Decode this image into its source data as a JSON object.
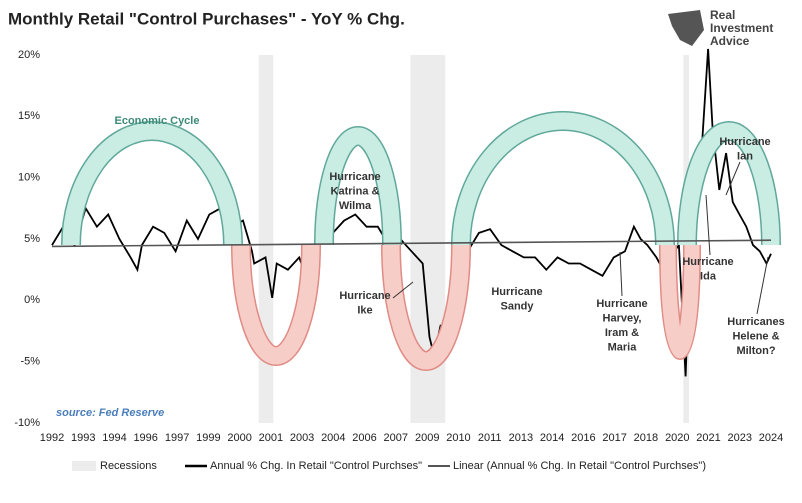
{
  "chart_data": {
    "type": "line",
    "title": "Monthly Retail \"Control Purchases\" - YoY % Chg.",
    "logo": [
      "Real",
      "Investment",
      "Advice"
    ],
    "source": "source: Fed Reserve",
    "cycle_label": "Economic  Cycle",
    "annotations": [
      [
        "Hurricane",
        "Katrina &",
        "Wilma"
      ],
      [
        "Hurricane",
        "Ike"
      ],
      [
        "Hurricane",
        "Sandy"
      ],
      [
        "Hurricane",
        "Harvey,",
        "Iram &",
        "Maria"
      ],
      [
        "Hurricane",
        "Ida"
      ],
      [
        "Hurricane",
        "Ian"
      ],
      [
        "Hurricanes",
        "Helene &",
        "Milton?"
      ]
    ],
    "xlim": [
      1992,
      2024
    ],
    "xticks": [
      {
        "value": 1992,
        "label": "1992"
      },
      {
        "value": 1993.39,
        "label": "1993"
      },
      {
        "value": 1994.78,
        "label": "1994"
      },
      {
        "value": 1996.17,
        "label": "1996"
      },
      {
        "value": 1997.57,
        "label": "1997"
      },
      {
        "value": 1998.96,
        "label": "1999"
      },
      {
        "value": 2000.35,
        "label": "2000"
      },
      {
        "value": 2001.74,
        "label": "2001"
      },
      {
        "value": 2003.13,
        "label": "2003"
      },
      {
        "value": 2004.52,
        "label": "2004"
      },
      {
        "value": 2005.91,
        "label": "2006"
      },
      {
        "value": 2007.3,
        "label": "2007"
      },
      {
        "value": 2008.7,
        "label": "2009"
      },
      {
        "value": 2010.09,
        "label": "2010"
      },
      {
        "value": 2011.48,
        "label": "2011"
      },
      {
        "value": 2012.87,
        "label": "2013"
      },
      {
        "value": 2014.26,
        "label": "2014"
      },
      {
        "value": 2015.65,
        "label": "2016"
      },
      {
        "value": 2017.04,
        "label": "2017"
      },
      {
        "value": 2018.43,
        "label": "2018"
      },
      {
        "value": 2019.83,
        "label": "2020"
      },
      {
        "value": 2021.22,
        "label": "2021"
      },
      {
        "value": 2022.61,
        "label": "2023"
      },
      {
        "value": 2024,
        "label": "2024"
      }
    ],
    "ylim": [
      -10,
      20
    ],
    "yticks": [
      {
        "value": -10,
        "label": "-10%"
      },
      {
        "value": -5,
        "label": "-5%"
      },
      {
        "value": 0,
        "label": "0%"
      },
      {
        "value": 5,
        "label": "5%"
      },
      {
        "value": 10,
        "label": "10%"
      },
      {
        "value": 15,
        "label": "15%"
      },
      {
        "value": 20,
        "label": "20%"
      }
    ],
    "recessions": {
      "name": "Recessions",
      "color": "#ececec",
      "ranges": [
        [
          2001.2,
          2001.85
        ],
        [
          2007.95,
          2009.5
        ],
        [
          2020.1,
          2020.35
        ]
      ]
    },
    "series": [
      {
        "name": "Annual % Chg. In Retail \"Control Purchses\"",
        "color": "#000000",
        "x": [
          1992,
          1992.5,
          1993,
          1993.5,
          1994,
          1994.5,
          1995,
          1995.5,
          1995.8,
          1996,
          1996.5,
          1997,
          1997.5,
          1998,
          1998.5,
          1999,
          1999.5,
          1999.9,
          2000,
          2000.5,
          2000.9,
          2001,
          2001.5,
          2001.8,
          2002,
          2002.5,
          2003,
          2003.3,
          2003.6,
          2004,
          2004.5,
          2005,
          2005.5,
          2006,
          2006.5,
          2007,
          2007.5,
          2008,
          2008.5,
          2008.8,
          2009,
          2009.3,
          2009.6,
          2010,
          2010.5,
          2011,
          2011.5,
          2012,
          2012.5,
          2013,
          2013.5,
          2014,
          2014.5,
          2015,
          2015.5,
          2016,
          2016.5,
          2017,
          2017.5,
          2017.9,
          2018.2,
          2018.5,
          2018.9,
          2019.2,
          2019.5,
          2019.9,
          2020.2,
          2020.4,
          2020.6,
          2020.8,
          2021.2,
          2021.4,
          2021.7,
          2022,
          2022.3,
          2022.6,
          2022.9,
          2023.2,
          2023.5,
          2023.8,
          2024
        ],
        "values": [
          4.5,
          6,
          4.5,
          7.5,
          6,
          7,
          5,
          3.5,
          2.5,
          4.5,
          6,
          5.5,
          4,
          6.5,
          5,
          7,
          7.5,
          9,
          6,
          6.5,
          4,
          3,
          3.5,
          0.2,
          3,
          2.5,
          3.5,
          2,
          4,
          6.5,
          5.5,
          6.5,
          7,
          6,
          6,
          4.5,
          5,
          4,
          3,
          -3,
          -4.5,
          -2,
          -4,
          2.5,
          4,
          5.5,
          5.8,
          4.5,
          4,
          3.5,
          3.5,
          2.5,
          3.5,
          3,
          3,
          2.5,
          2,
          3.5,
          4,
          6,
          5,
          4.5,
          3.5,
          2.5,
          3.5,
          4.5,
          -6.2,
          4,
          10,
          9,
          20.5,
          14,
          9,
          12,
          8,
          7,
          6,
          4.5,
          4,
          3,
          3.8
        ]
      },
      {
        "name": "Linear (Annual % Chg. In Retail \"Control Purchses\")",
        "color": "#555555",
        "x": [
          1992,
          2024
        ],
        "values": [
          4.4,
          4.9
        ]
      }
    ]
  }
}
